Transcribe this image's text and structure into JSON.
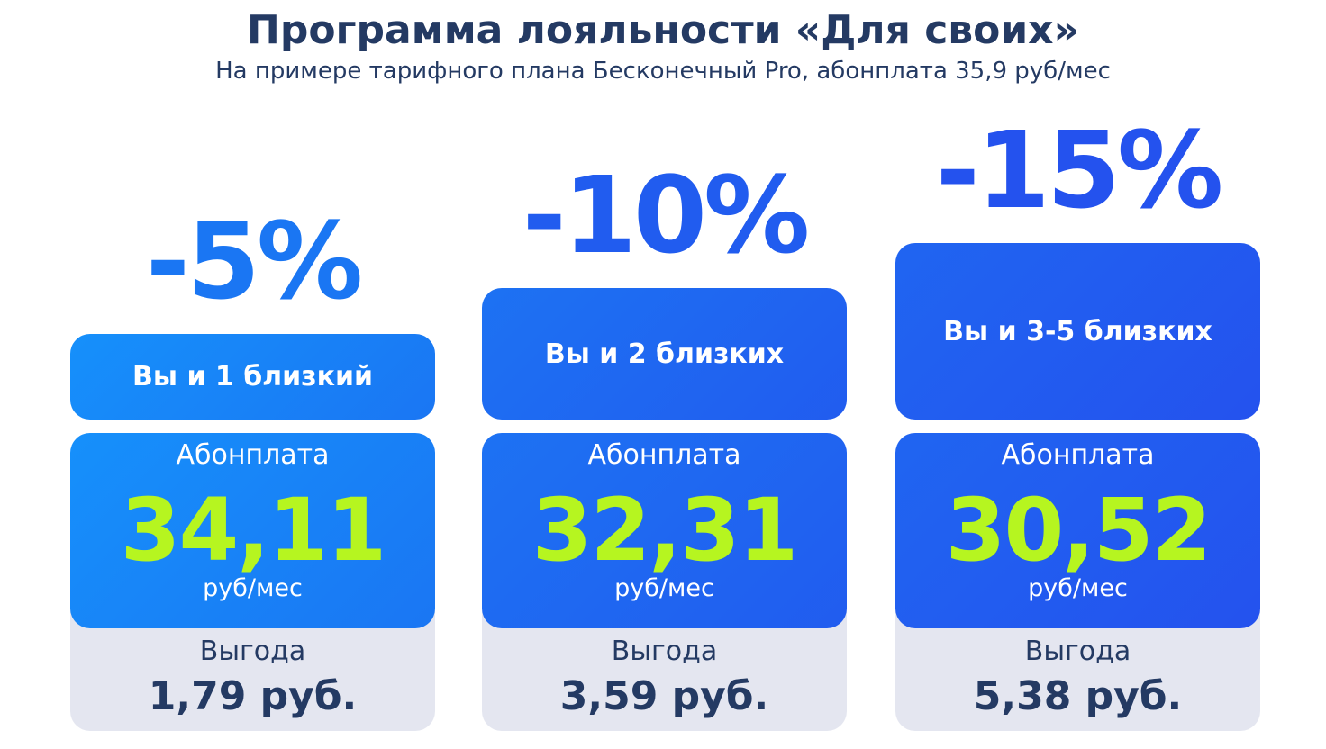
{
  "header": {
    "title": "Программа лояльности «Для своих»",
    "subtitle": "На примере тарифного плана Бесконечный Pro, абонплата 35,9 руб/мес"
  },
  "tiers": [
    {
      "discount": "-5%",
      "group": "Вы и 1 близкий",
      "fee_label": "Абонплата",
      "fee": "34,11",
      "fee_unit": "руб/мес",
      "saving_label": "Выгода",
      "saving": "1,79 руб."
    },
    {
      "discount": "-10%",
      "group": "Вы и 2 близких",
      "fee_label": "Абонплата",
      "fee": "32,31",
      "fee_unit": "руб/мес",
      "saving_label": "Выгода",
      "saving": "3,59 руб."
    },
    {
      "discount": "-15%",
      "group": "Вы и 3-5 близких",
      "fee_label": "Абонплата",
      "fee": "30,52",
      "fee_unit": "руб/мес",
      "saving_label": "Выгода",
      "saving": "5,38 руб."
    }
  ]
}
